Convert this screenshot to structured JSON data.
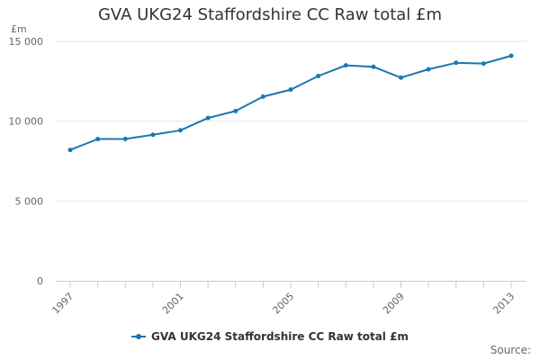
{
  "chart_data": {
    "type": "line",
    "title": "GVA UKG24 Staffordshire CC Raw total £m",
    "y_unit": "£m",
    "xlabel": "",
    "ylabel": "",
    "x": [
      1997,
      1998,
      1999,
      2000,
      2001,
      2002,
      2003,
      2004,
      2005,
      2006,
      2007,
      2008,
      2009,
      2010,
      2011,
      2012,
      2013
    ],
    "x_tick_labels": [
      "1997",
      "2001",
      "2005",
      "2009",
      "2013"
    ],
    "x_tick_values": [
      1997,
      2001,
      2005,
      2009,
      2013
    ],
    "ylim": [
      0,
      15000
    ],
    "y_ticks": [
      0,
      5000,
      10000,
      15000
    ],
    "y_tick_labels": [
      "0",
      "5 000",
      "10 000",
      "15 000"
    ],
    "series": [
      {
        "name": "GVA UKG24 Staffordshire CC Raw total £m",
        "color": "#1a77b1",
        "values": [
          8200,
          8880,
          8890,
          9150,
          9430,
          10200,
          10640,
          11540,
          11980,
          12830,
          13500,
          13410,
          12730,
          13250,
          13660,
          13610,
          14100
        ]
      }
    ],
    "grid": "horizontal",
    "legend_position": "bottom-center"
  },
  "credits": "Source:"
}
